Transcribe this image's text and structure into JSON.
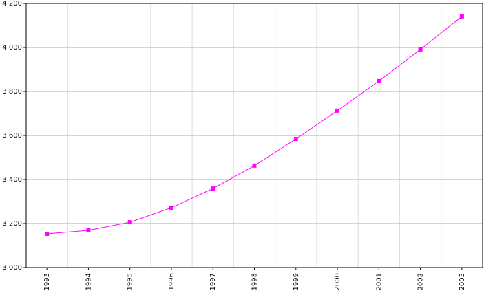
{
  "chart_data": {
    "type": "line",
    "categories": [
      "1993",
      "1994",
      "1995",
      "1996",
      "1997",
      "1998",
      "1999",
      "2000",
      "2001",
      "2002",
      "2003"
    ],
    "values": [
      3153,
      3169,
      3206,
      3272,
      3359,
      3463,
      3584,
      3713,
      3847,
      3991,
      4141
    ],
    "color": "#ff00ff",
    "ylim": [
      3000,
      4200
    ],
    "yticks": [
      {
        "value": 3000,
        "label": "3 000"
      },
      {
        "value": 3200,
        "label": "3 200"
      },
      {
        "value": 3400,
        "label": "3 400"
      },
      {
        "value": 3600,
        "label": "3 600"
      },
      {
        "value": 3800,
        "label": "3 800"
      },
      {
        "value": 4000,
        "label": "4 000"
      },
      {
        "value": 4200,
        "label": "4 200"
      }
    ],
    "grid": true
  }
}
